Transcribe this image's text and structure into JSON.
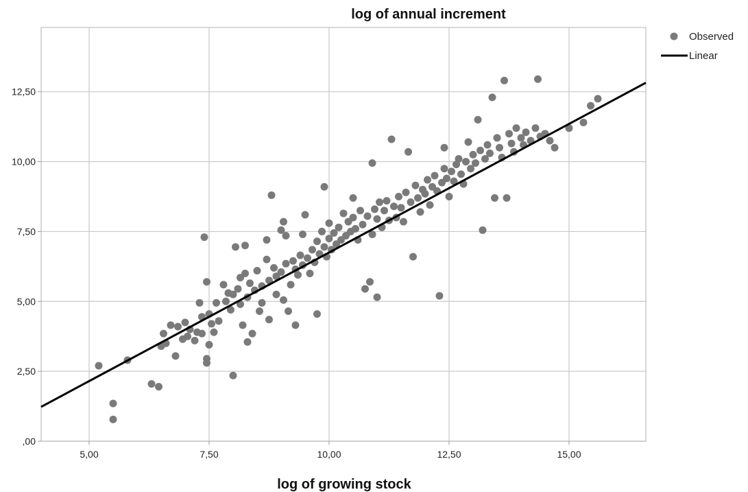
{
  "chart_data": {
    "type": "scatter",
    "title": "log of annual increment",
    "xlabel": "log of growing stock",
    "ylabel": "",
    "xlim": [
      4.0,
      16.6
    ],
    "ylim": [
      0.0,
      14.8
    ],
    "x_ticks": [
      5.0,
      7.5,
      10.0,
      12.5,
      15.0
    ],
    "x_tick_labels": [
      "5,00",
      "7,50",
      "10,00",
      "12,50",
      "15,00"
    ],
    "y_ticks": [
      0.0,
      2.5,
      5.0,
      7.5,
      10.0,
      12.5
    ],
    "y_tick_labels": [
      ",00",
      "2,50",
      "5,00",
      "7,50",
      "10,00",
      "12,50"
    ],
    "grid": true,
    "legend": {
      "position": "top-right",
      "entries": [
        {
          "label": "Observed",
          "marker": "circle",
          "color": "#7a7a7a"
        },
        {
          "label": "Linear",
          "marker": "line",
          "color": "#000000"
        }
      ]
    },
    "linear_fit": {
      "slope": 0.92,
      "intercept": -2.45,
      "color": "#000000"
    },
    "series": [
      {
        "name": "Observed",
        "color": "#7a7a7a",
        "points": [
          [
            5.2,
            2.7
          ],
          [
            5.5,
            1.35
          ],
          [
            5.5,
            0.78
          ],
          [
            5.8,
            2.9
          ],
          [
            6.3,
            2.05
          ],
          [
            6.45,
            1.95
          ],
          [
            6.5,
            3.4
          ],
          [
            6.55,
            3.85
          ],
          [
            6.6,
            3.5
          ],
          [
            6.7,
            4.15
          ],
          [
            6.8,
            3.05
          ],
          [
            6.85,
            4.1
          ],
          [
            6.95,
            3.65
          ],
          [
            7.0,
            4.25
          ],
          [
            7.05,
            3.75
          ],
          [
            7.1,
            4.0
          ],
          [
            7.2,
            3.6
          ],
          [
            7.25,
            3.9
          ],
          [
            7.3,
            4.95
          ],
          [
            7.35,
            4.45
          ],
          [
            7.35,
            3.85
          ],
          [
            7.4,
            7.3
          ],
          [
            7.45,
            5.7
          ],
          [
            7.45,
            2.95
          ],
          [
            7.45,
            2.8
          ],
          [
            7.5,
            3.45
          ],
          [
            7.5,
            4.55
          ],
          [
            7.55,
            4.2
          ],
          [
            7.6,
            3.9
          ],
          [
            7.65,
            4.95
          ],
          [
            7.7,
            4.3
          ],
          [
            7.8,
            5.6
          ],
          [
            7.85,
            5.0
          ],
          [
            7.9,
            5.3
          ],
          [
            7.95,
            4.7
          ],
          [
            8.0,
            5.25
          ],
          [
            8.0,
            2.35
          ],
          [
            8.05,
            6.95
          ],
          [
            8.1,
            5.45
          ],
          [
            8.15,
            5.85
          ],
          [
            8.15,
            4.9
          ],
          [
            8.2,
            4.15
          ],
          [
            8.25,
            6.0
          ],
          [
            8.25,
            7.0
          ],
          [
            8.3,
            3.55
          ],
          [
            8.3,
            5.15
          ],
          [
            8.35,
            5.65
          ],
          [
            8.4,
            3.85
          ],
          [
            8.45,
            5.4
          ],
          [
            8.5,
            6.1
          ],
          [
            8.55,
            4.65
          ],
          [
            8.6,
            4.95
          ],
          [
            8.6,
            5.55
          ],
          [
            8.7,
            6.5
          ],
          [
            8.7,
            7.2
          ],
          [
            8.75,
            5.75
          ],
          [
            8.75,
            4.35
          ],
          [
            8.8,
            8.8
          ],
          [
            8.85,
            6.2
          ],
          [
            8.9,
            5.25
          ],
          [
            8.9,
            5.9
          ],
          [
            9.0,
            6.05
          ],
          [
            9.0,
            7.55
          ],
          [
            9.05,
            7.85
          ],
          [
            9.05,
            5.05
          ],
          [
            9.1,
            6.35
          ],
          [
            9.1,
            7.35
          ],
          [
            9.15,
            4.65
          ],
          [
            9.2,
            5.6
          ],
          [
            9.25,
            6.45
          ],
          [
            9.3,
            6.15
          ],
          [
            9.3,
            4.15
          ],
          [
            9.35,
            5.95
          ],
          [
            9.4,
            6.65
          ],
          [
            9.45,
            6.3
          ],
          [
            9.45,
            7.4
          ],
          [
            9.5,
            8.1
          ],
          [
            9.55,
            6.55
          ],
          [
            9.6,
            6.0
          ],
          [
            9.65,
            6.85
          ],
          [
            9.7,
            6.4
          ],
          [
            9.75,
            7.15
          ],
          [
            9.75,
            4.55
          ],
          [
            9.8,
            6.7
          ],
          [
            9.85,
            7.5
          ],
          [
            9.9,
            6.95
          ],
          [
            9.9,
            9.1
          ],
          [
            9.95,
            6.6
          ],
          [
            10.0,
            7.25
          ],
          [
            10.0,
            7.8
          ],
          [
            10.05,
            6.85
          ],
          [
            10.1,
            7.45
          ],
          [
            10.15,
            7.05
          ],
          [
            10.2,
            7.65
          ],
          [
            10.25,
            7.2
          ],
          [
            10.3,
            8.15
          ],
          [
            10.35,
            7.35
          ],
          [
            10.4,
            7.85
          ],
          [
            10.45,
            7.5
          ],
          [
            10.5,
            8.0
          ],
          [
            10.5,
            8.7
          ],
          [
            10.55,
            7.6
          ],
          [
            10.6,
            7.2
          ],
          [
            10.65,
            8.25
          ],
          [
            10.7,
            7.75
          ],
          [
            10.75,
            5.45
          ],
          [
            10.8,
            8.05
          ],
          [
            10.85,
            5.7
          ],
          [
            10.9,
            7.4
          ],
          [
            10.9,
            9.95
          ],
          [
            10.95,
            8.3
          ],
          [
            11.0,
            7.95
          ],
          [
            11.0,
            5.15
          ],
          [
            11.05,
            8.55
          ],
          [
            11.1,
            7.65
          ],
          [
            11.15,
            8.25
          ],
          [
            11.2,
            8.6
          ],
          [
            11.25,
            7.9
          ],
          [
            11.3,
            10.8
          ],
          [
            11.35,
            8.4
          ],
          [
            11.4,
            8.0
          ],
          [
            11.45,
            8.75
          ],
          [
            11.5,
            8.35
          ],
          [
            11.55,
            7.85
          ],
          [
            11.6,
            8.9
          ],
          [
            11.65,
            10.35
          ],
          [
            11.7,
            8.55
          ],
          [
            11.75,
            6.6
          ],
          [
            11.8,
            9.15
          ],
          [
            11.85,
            8.7
          ],
          [
            11.9,
            8.2
          ],
          [
            11.95,
            9.0
          ],
          [
            12.0,
            8.85
          ],
          [
            12.05,
            9.35
          ],
          [
            12.1,
            8.45
          ],
          [
            12.15,
            9.1
          ],
          [
            12.2,
            9.5
          ],
          [
            12.25,
            8.95
          ],
          [
            12.3,
            5.2
          ],
          [
            12.35,
            9.25
          ],
          [
            12.4,
            9.75
          ],
          [
            12.4,
            10.5
          ],
          [
            12.45,
            9.4
          ],
          [
            12.5,
            8.75
          ],
          [
            12.55,
            9.65
          ],
          [
            12.6,
            9.3
          ],
          [
            12.65,
            9.9
          ],
          [
            12.7,
            10.1
          ],
          [
            12.75,
            9.55
          ],
          [
            12.8,
            9.2
          ],
          [
            12.85,
            10.0
          ],
          [
            12.9,
            10.7
          ],
          [
            12.95,
            9.75
          ],
          [
            13.0,
            10.25
          ],
          [
            13.05,
            9.95
          ],
          [
            13.1,
            11.5
          ],
          [
            13.15,
            10.4
          ],
          [
            13.2,
            7.55
          ],
          [
            13.25,
            10.1
          ],
          [
            13.3,
            10.6
          ],
          [
            13.35,
            10.3
          ],
          [
            13.4,
            12.3
          ],
          [
            13.45,
            8.7
          ],
          [
            13.5,
            10.85
          ],
          [
            13.55,
            10.5
          ],
          [
            13.6,
            10.15
          ],
          [
            13.65,
            12.9
          ],
          [
            13.7,
            8.7
          ],
          [
            13.75,
            11.0
          ],
          [
            13.8,
            10.65
          ],
          [
            13.85,
            10.35
          ],
          [
            13.9,
            11.2
          ],
          [
            14.0,
            10.85
          ],
          [
            14.05,
            10.6
          ],
          [
            14.1,
            11.05
          ],
          [
            14.2,
            10.75
          ],
          [
            14.3,
            11.2
          ],
          [
            14.35,
            12.95
          ],
          [
            14.4,
            10.9
          ],
          [
            14.5,
            11.0
          ],
          [
            14.6,
            10.75
          ],
          [
            14.7,
            10.5
          ],
          [
            15.0,
            11.2
          ],
          [
            15.3,
            11.4
          ],
          [
            15.45,
            12.0
          ],
          [
            15.6,
            12.25
          ]
        ]
      }
    ]
  }
}
